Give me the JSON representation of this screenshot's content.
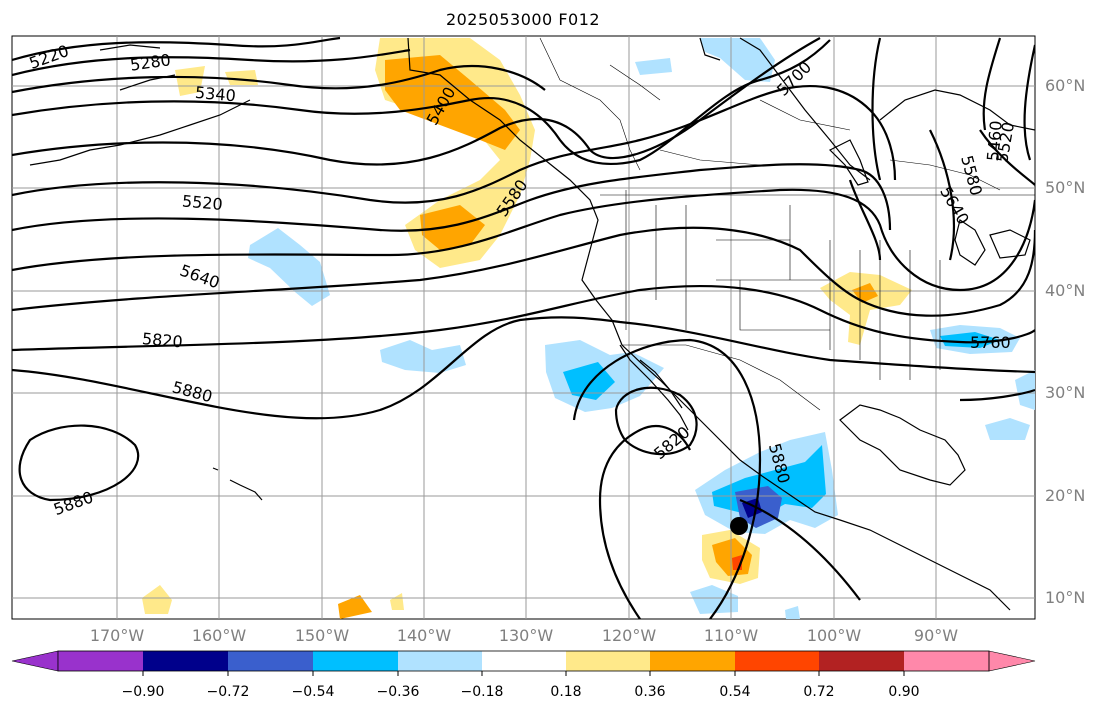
{
  "title": "2025053000 F012",
  "latitude_labels": [
    "60°N",
    "50°N",
    "40°N",
    "30°N",
    "20°N",
    "10°N"
  ],
  "longitude_labels": [
    "170°W",
    "160°W",
    "150°W",
    "140°W",
    "130°W",
    "120°W",
    "110°W",
    "100°W",
    "90°W"
  ],
  "contour_labels": [
    "5220",
    "5280",
    "5340",
    "5400",
    "5460",
    "5520",
    "5580",
    "5640",
    "5700",
    "5760",
    "5820",
    "5880"
  ],
  "colorbar": {
    "ticks": [
      "−0.90",
      "−0.72",
      "−0.54",
      "−0.36",
      "−0.18",
      "0.18",
      "0.36",
      "0.54",
      "0.72",
      "0.90"
    ],
    "colors": [
      "#9932cc",
      "#00008b",
      "#3a5fcd",
      "#00bfff",
      "#b0e2ff",
      "#ffffff",
      "#ffe98a",
      "#ffa500",
      "#ff4500",
      "#b22222",
      "#ff88aa"
    ]
  },
  "storm_marker": "tropical-cyclone-center"
}
